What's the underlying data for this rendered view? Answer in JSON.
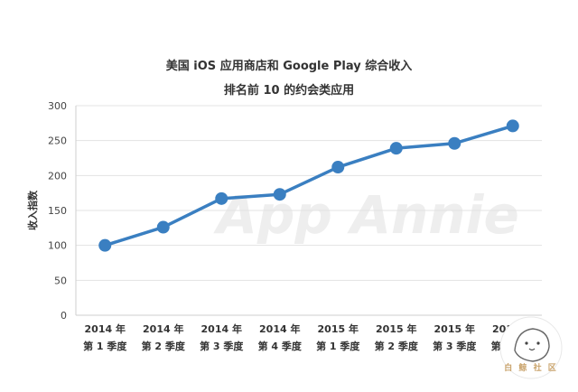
{
  "chart_data": {
    "type": "line",
    "title": "美国 iOS 应用商店和 Google Play 综合收入",
    "subtitle": "排名前 10 的约会类应用",
    "ylabel": "收入指数",
    "ylim": [
      0,
      300
    ],
    "yticks": [
      0,
      50,
      100,
      150,
      200,
      250,
      300
    ],
    "categories": [
      [
        "2014 年",
        "第 1 季度"
      ],
      [
        "2014 年",
        "第 2 季度"
      ],
      [
        "2014 年",
        "第 3 季度"
      ],
      [
        "2014 年",
        "第 4 季度"
      ],
      [
        "2015 年",
        "第 1 季度"
      ],
      [
        "2015 年",
        "第 2 季度"
      ],
      [
        "2015 年",
        "第 3 季度"
      ],
      [
        "2015 年",
        "第 4 季度"
      ]
    ],
    "values": [
      100,
      126,
      167,
      173,
      212,
      239,
      246,
      271
    ],
    "grid": true,
    "line_color": "#3a7fc1"
  },
  "watermark": "App Annie",
  "logo": {
    "text": "白 鲸 社 区"
  }
}
